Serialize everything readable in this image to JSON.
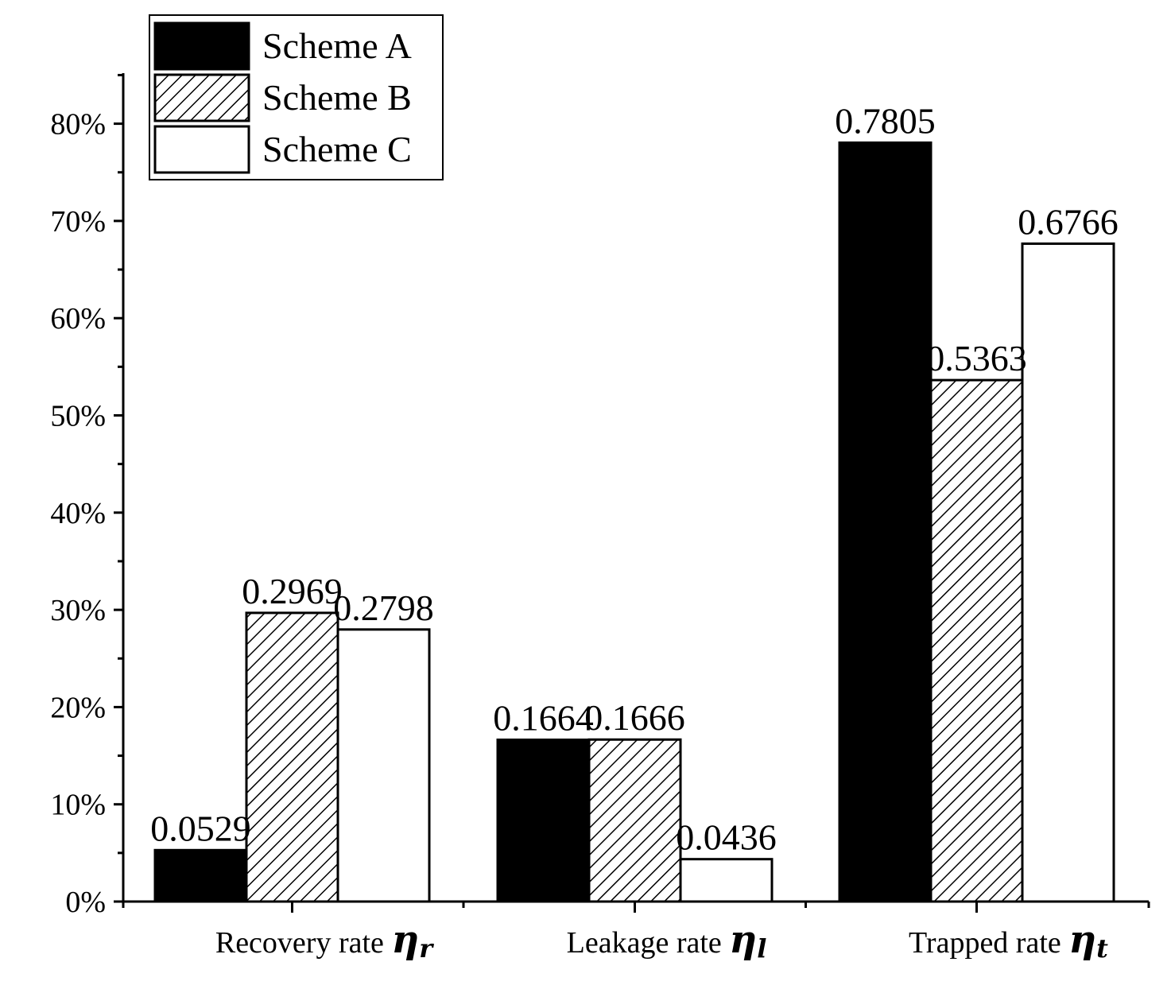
{
  "chart_data": {
    "type": "bar",
    "categories": [
      "Recovery rate",
      "Leakage rate",
      "Trapped rate"
    ],
    "category_symbols": [
      {
        "symbol": "η",
        "sub": "r"
      },
      {
        "symbol": "η",
        "sub": "l"
      },
      {
        "symbol": "η",
        "sub": "t"
      }
    ],
    "series": [
      {
        "name": "Scheme A",
        "fill": "solid",
        "color": "#000000",
        "values": [
          0.0529,
          0.1664,
          0.7805
        ],
        "labels": [
          "0.0529",
          "0.1664",
          "0.7805"
        ]
      },
      {
        "name": "Scheme B",
        "fill": "hatch",
        "color": "#000000",
        "values": [
          0.2969,
          0.1666,
          0.5363
        ],
        "labels": [
          "0.2969",
          "0.1666",
          "0.5363"
        ]
      },
      {
        "name": "Scheme C",
        "fill": "empty",
        "color": "#ffffff",
        "values": [
          0.2798,
          0.0436,
          0.6766
        ],
        "labels": [
          "0.2798",
          "0.0436",
          "0.6766"
        ]
      }
    ],
    "ylim": [
      0,
      0.85
    ],
    "yticks": [
      0,
      0.1,
      0.2,
      0.3,
      0.4,
      0.5,
      0.6,
      0.7,
      0.8
    ],
    "ytick_labels": [
      "0%",
      "10%",
      "20%",
      "30%",
      "40%",
      "50%",
      "60%",
      "70%",
      "80%"
    ],
    "legend_position": "top-left",
    "title": "",
    "xlabel": "",
    "ylabel": ""
  }
}
